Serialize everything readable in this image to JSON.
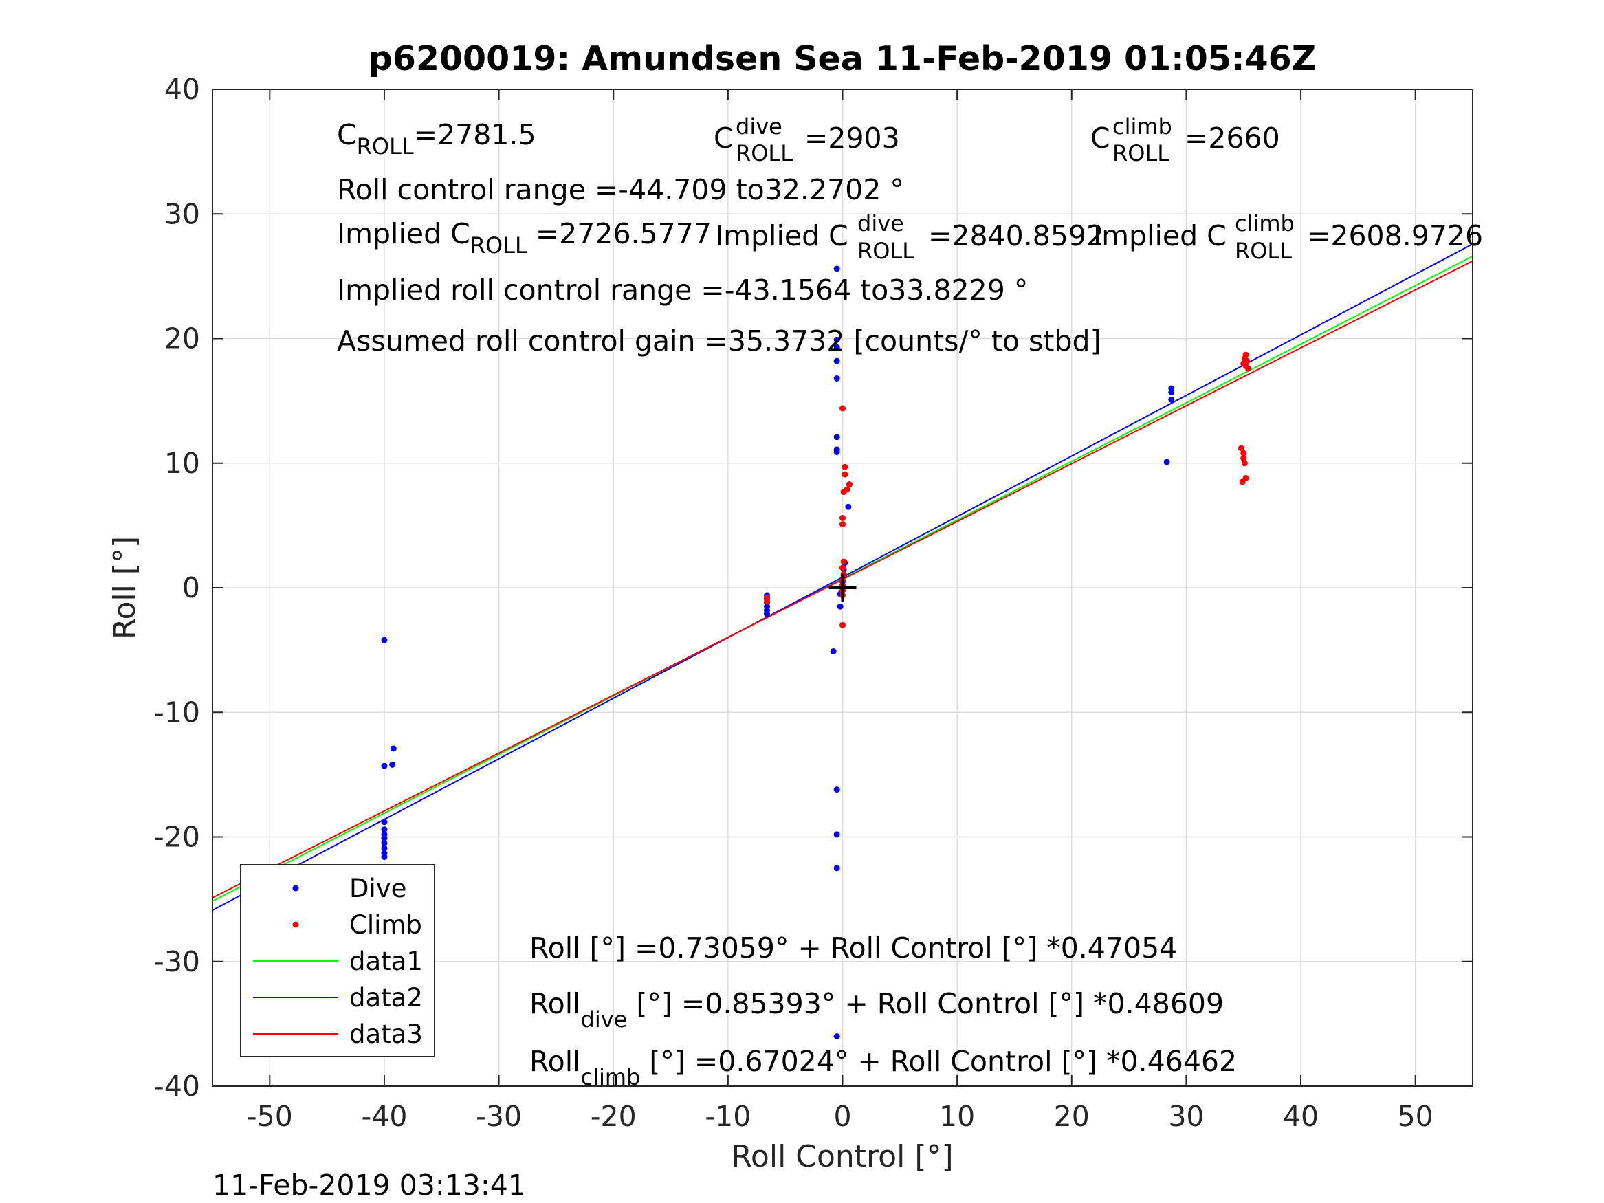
{
  "title": "p6200019: Amundsen Sea 11-Feb-2019 01:05:46Z",
  "timestamp": "11-Feb-2019 03:13:41",
  "chart_data": {
    "type": "scatter",
    "title": "p6200019: Amundsen Sea 11-Feb-2019 01:05:46Z",
    "xlabel": "Roll Control [°]",
    "ylabel": "Roll [°]",
    "xlim": [
      -55,
      55
    ],
    "ylim": [
      -40,
      40
    ],
    "xticks": [
      -50,
      -40,
      -30,
      -20,
      -10,
      0,
      10,
      20,
      30,
      40,
      50
    ],
    "yticks": [
      -40,
      -30,
      -20,
      -10,
      0,
      10,
      20,
      30,
      40
    ],
    "grid": true,
    "legend_position": "bottom-left",
    "series": [
      {
        "name": "Dive",
        "kind": "points",
        "color": "#0000ff",
        "points": [
          [
            -40,
            -4.2
          ],
          [
            -40,
            -14.3
          ],
          [
            -39.3,
            -14.2
          ],
          [
            -39.2,
            -12.9
          ],
          [
            -40,
            -18.8
          ],
          [
            -40,
            -19.4
          ],
          [
            -40,
            -19.8
          ],
          [
            -40,
            -20.1
          ],
          [
            -40,
            -20.5
          ],
          [
            -40,
            -20.9
          ],
          [
            -40,
            -21.3
          ],
          [
            -40,
            -21.6
          ],
          [
            -6.6,
            -0.6
          ],
          [
            -6.6,
            -0.9
          ],
          [
            -6.6,
            -1.2
          ],
          [
            -6.6,
            -1.5
          ],
          [
            -6.6,
            -1.8
          ],
          [
            -6.6,
            -2.1
          ],
          [
            -0.5,
            25.6
          ],
          [
            -0.5,
            19.9
          ],
          [
            -0.5,
            19.3
          ],
          [
            -0.5,
            18.2
          ],
          [
            -0.5,
            16.8
          ],
          [
            -0.5,
            12.1
          ],
          [
            -0.5,
            11.1
          ],
          [
            -0.5,
            10.9
          ],
          [
            0.5,
            6.5
          ],
          [
            0.2,
            2.0
          ],
          [
            0.1,
            1.5
          ],
          [
            0.1,
            1.0
          ],
          [
            0.0,
            0.5
          ],
          [
            0.0,
            0.0
          ],
          [
            -0.2,
            -0.5
          ],
          [
            -0.2,
            -1.5
          ],
          [
            -0.8,
            -5.1
          ],
          [
            -0.5,
            -16.2
          ],
          [
            -0.5,
            -19.8
          ],
          [
            -0.5,
            -22.5
          ],
          [
            -0.5,
            -36.0
          ],
          [
            28.3,
            10.1
          ],
          [
            28.7,
            15.1
          ],
          [
            28.7,
            15.7
          ],
          [
            28.7,
            16.0
          ]
        ]
      },
      {
        "name": "Climb",
        "kind": "points",
        "color": "#ff0000",
        "points": [
          [
            0.0,
            14.4
          ],
          [
            0.2,
            9.7
          ],
          [
            0.2,
            9.1
          ],
          [
            0.6,
            8.3
          ],
          [
            0.4,
            7.9
          ],
          [
            0.1,
            7.7
          ],
          [
            0.0,
            5.6
          ],
          [
            0.0,
            5.1
          ],
          [
            0.1,
            2.1
          ],
          [
            0.0,
            1.6
          ],
          [
            0.1,
            1.1
          ],
          [
            0.0,
            0.6
          ],
          [
            0.0,
            0.2
          ],
          [
            0.0,
            -0.2
          ],
          [
            0.0,
            -0.6
          ],
          [
            0.0,
            -3.0
          ],
          [
            -6.6,
            -0.8
          ],
          [
            -6.6,
            -1.1
          ],
          [
            35.2,
            18.7
          ],
          [
            35.1,
            18.4
          ],
          [
            35.3,
            18.2
          ],
          [
            35.0,
            18.0
          ],
          [
            35.2,
            17.8
          ],
          [
            35.4,
            17.6
          ],
          [
            34.8,
            11.2
          ],
          [
            35.0,
            10.8
          ],
          [
            35.0,
            10.4
          ],
          [
            35.1,
            10.0
          ],
          [
            35.2,
            8.8
          ],
          [
            34.9,
            8.5
          ]
        ]
      },
      {
        "name": "data1",
        "kind": "line",
        "color": "#00ff00",
        "intercept": 0.73059,
        "slope": 0.47054
      },
      {
        "name": "data2",
        "kind": "line",
        "color": "#0000ff",
        "intercept": 0.85393,
        "slope": 0.48609
      },
      {
        "name": "data3",
        "kind": "line",
        "color": "#ff0000",
        "intercept": 0.67024,
        "slope": 0.46462
      }
    ],
    "marker": {
      "x": 0,
      "y": 0,
      "symbol": "+",
      "color": "#000000"
    },
    "annotations": {
      "c_roll": {
        "base": "C",
        "sub": "ROLL",
        "value": "=2781.5"
      },
      "c_roll_dive": {
        "base": "C",
        "sup": "dive",
        "sub": "ROLL",
        "value": "=2903"
      },
      "c_roll_climb": {
        "base": "C",
        "sup": "climb",
        "sub": "ROLL",
        "value": "=2660"
      },
      "roll_range": "Roll control range =-44.709 to32.2702 °",
      "implied_c_roll": {
        "prefix": "Implied C",
        "sub": "ROLL",
        "value": "=2726.5777"
      },
      "implied_c_roll_dive": {
        "prefix": "Implied C",
        "sup": "dive",
        "sub": "ROLL",
        "value": "=2840.8592"
      },
      "implied_c_roll_climb": {
        "prefix": "Implied C",
        "sup": "climb",
        "sub": "ROLL",
        "value": "=2608.9726"
      },
      "implied_range": "Implied roll control range =-43.1564 to33.8229 °",
      "gain": "Assumed roll control gain =35.3732 [counts/° to stbd]",
      "eq_all": "Roll [°] =0.73059° + Roll Control [°] *0.47054",
      "eq_dive": {
        "base": "Roll",
        "sub": "dive",
        "rest": " [°] =0.85393° + Roll Control [°] *0.48609"
      },
      "eq_climb": {
        "base": "Roll",
        "sub": "climb",
        "rest": " [°] =0.67024° + Roll Control [°] *0.46462"
      }
    }
  }
}
